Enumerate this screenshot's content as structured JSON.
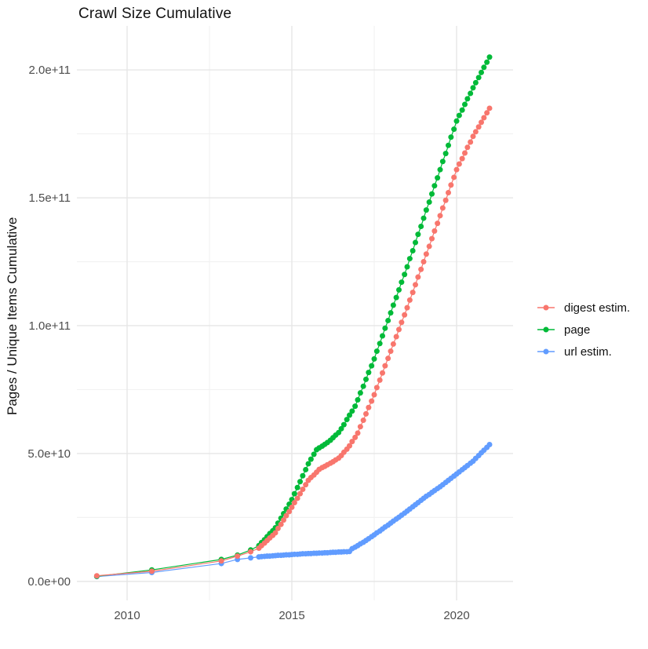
{
  "chart_data": {
    "type": "scatter",
    "title": "Crawl Size Cumulative",
    "ylabel": "Pages / Unique Items Cumulative",
    "xlabel": "",
    "legend_position": "right",
    "grid": "major+minor",
    "y_unit_multiplier": 1000000000,
    "xlim": [
      2008.476,
      2021.714
    ],
    "ylim_e9": [
      -7.4,
      217.2
    ],
    "x_ticks": [
      {
        "value": 2010,
        "label": "2010"
      },
      {
        "value": 2015,
        "label": "2015"
      },
      {
        "value": 2020,
        "label": "2020"
      }
    ],
    "y_ticks": [
      {
        "value_e9": 0,
        "label": "0.0e+00"
      },
      {
        "value_e9": 50,
        "label": "5.0e+10"
      },
      {
        "value_e9": 100,
        "label": "1.0e+11"
      },
      {
        "value_e9": 150,
        "label": "1.5e+11"
      },
      {
        "value_e9": 200,
        "label": "2.0e+11"
      }
    ],
    "x_minor": [
      2012.5,
      2017.5
    ],
    "y_minor_e9": [
      25,
      75,
      125,
      175
    ],
    "x": [
      2009.08,
      2010.75,
      2012.86,
      2013.35,
      2013.75,
      2014,
      2014.08,
      2014.17,
      2014.25,
      2014.33,
      2014.42,
      2014.5,
      2014.58,
      2014.67,
      2014.75,
      2014.83,
      2014.92,
      2015,
      2015.08,
      2015.17,
      2015.25,
      2015.33,
      2015.42,
      2015.5,
      2015.58,
      2015.67,
      2015.75,
      2015.83,
      2015.92,
      2016,
      2016.08,
      2016.17,
      2016.25,
      2016.33,
      2016.42,
      2016.5,
      2016.58,
      2016.67,
      2016.75,
      2016.83,
      2016.92,
      2017,
      2017.08,
      2017.17,
      2017.25,
      2017.33,
      2017.42,
      2017.5,
      2017.58,
      2017.67,
      2017.75,
      2017.83,
      2017.92,
      2018,
      2018.08,
      2018.17,
      2018.25,
      2018.33,
      2018.42,
      2018.5,
      2018.58,
      2018.67,
      2018.75,
      2018.83,
      2018.92,
      2019,
      2019.08,
      2019.17,
      2019.25,
      2019.33,
      2019.42,
      2019.5,
      2019.58,
      2019.67,
      2019.75,
      2019.83,
      2019.92,
      2020,
      2020.08,
      2020.17,
      2020.25,
      2020.33,
      2020.42,
      2020.5,
      2020.58,
      2020.67,
      2020.75,
      2020.83,
      2020.92,
      2021
    ],
    "series": [
      {
        "name": "digest estim.",
        "color": "#F8766D",
        "y_e9": [
          2.2,
          4.0,
          8.0,
          9.9,
          11.6,
          13,
          14,
          15,
          16,
          17,
          18,
          19,
          20.7,
          22.3,
          24,
          25.7,
          27.3,
          29,
          30.8,
          32.5,
          34.3,
          36,
          37.8,
          39.5,
          40.6,
          41.6,
          42.7,
          43.8,
          44.5,
          45,
          45.6,
          46.2,
          46.8,
          47.5,
          48.2,
          49.2,
          50.5,
          51.7,
          53,
          54.7,
          56.3,
          58,
          60.5,
          63,
          65.5,
          68,
          70.5,
          73,
          75.8,
          78.7,
          81.5,
          84.3,
          87.2,
          90,
          92.8,
          95.7,
          98.5,
          101.3,
          104.2,
          107,
          110,
          113,
          116,
          119,
          122,
          125,
          128,
          131,
          134,
          137,
          140,
          143,
          146,
          149,
          152,
          155,
          158,
          161,
          163.2,
          165.3,
          167.5,
          169.7,
          171.8,
          174,
          175.8,
          177.7,
          179.5,
          181.3,
          183.2,
          185
        ]
      },
      {
        "name": "page",
        "color": "#00BA38",
        "y_e9": [
          2.0,
          4.5,
          8.6,
          10.3,
          12.3,
          14,
          15.2,
          16.3,
          17.5,
          18.7,
          19.8,
          21,
          22.8,
          24.7,
          26.5,
          28.3,
          30.2,
          32,
          34.3,
          36.7,
          39,
          41.3,
          43.7,
          46,
          47.8,
          49.7,
          51.5,
          52.2,
          52.9,
          53.6,
          54.3,
          55.2,
          56.2,
          57.2,
          58.2,
          59.7,
          61.3,
          63.3,
          65,
          66.6,
          68.5,
          71,
          73.7,
          76.3,
          79,
          81.7,
          84.3,
          87,
          90,
          93,
          96,
          99,
          102,
          105,
          108,
          111,
          114,
          117,
          120,
          123,
          126.2,
          129.3,
          132.5,
          135.7,
          138.8,
          142,
          145.2,
          148.3,
          151.5,
          154.7,
          157.8,
          161,
          164.2,
          167.3,
          170.5,
          173.7,
          176.8,
          180,
          182.2,
          184.3,
          186.5,
          188.7,
          190.8,
          193,
          195,
          197,
          199,
          201,
          203,
          205
        ]
      },
      {
        "name": "url estim.",
        "color": "#619CFF",
        "y_e9": [
          1.9,
          3.5,
          7.0,
          8.6,
          9.2,
          9.6,
          9.7,
          9.8,
          9.9,
          9.9,
          10,
          10.1,
          10.2,
          10.2,
          10.3,
          10.4,
          10.4,
          10.5,
          10.6,
          10.6,
          10.7,
          10.8,
          10.8,
          10.9,
          10.9,
          11,
          11,
          11.1,
          11.1,
          11.2,
          11.2,
          11.3,
          11.4,
          11.4,
          11.5,
          11.5,
          11.6,
          11.6,
          11.7,
          12.8,
          13.4,
          14,
          14.7,
          15.3,
          16,
          16.7,
          17.5,
          18.2,
          19,
          19.7,
          20.5,
          21.3,
          22,
          22.8,
          23.6,
          24.4,
          25.1,
          25.9,
          26.7,
          27.5,
          28.3,
          29.2,
          30,
          30.8,
          31.7,
          32.5,
          33.3,
          34,
          34.8,
          35.5,
          36.3,
          37,
          37.8,
          38.7,
          39.5,
          40.3,
          41.2,
          42,
          42.8,
          43.7,
          44.5,
          45.3,
          46.2,
          47,
          48.1,
          49.2,
          50.3,
          51.3,
          52.4,
          53.5
        ]
      }
    ],
    "draw_order": [
      2,
      1,
      0
    ],
    "style": {
      "grid_major_color": "#e6e6e6",
      "grid_minor_color": "#f2f2f2",
      "tick_label_color": "#4d4d4d",
      "point_radius": 3.5
    }
  }
}
